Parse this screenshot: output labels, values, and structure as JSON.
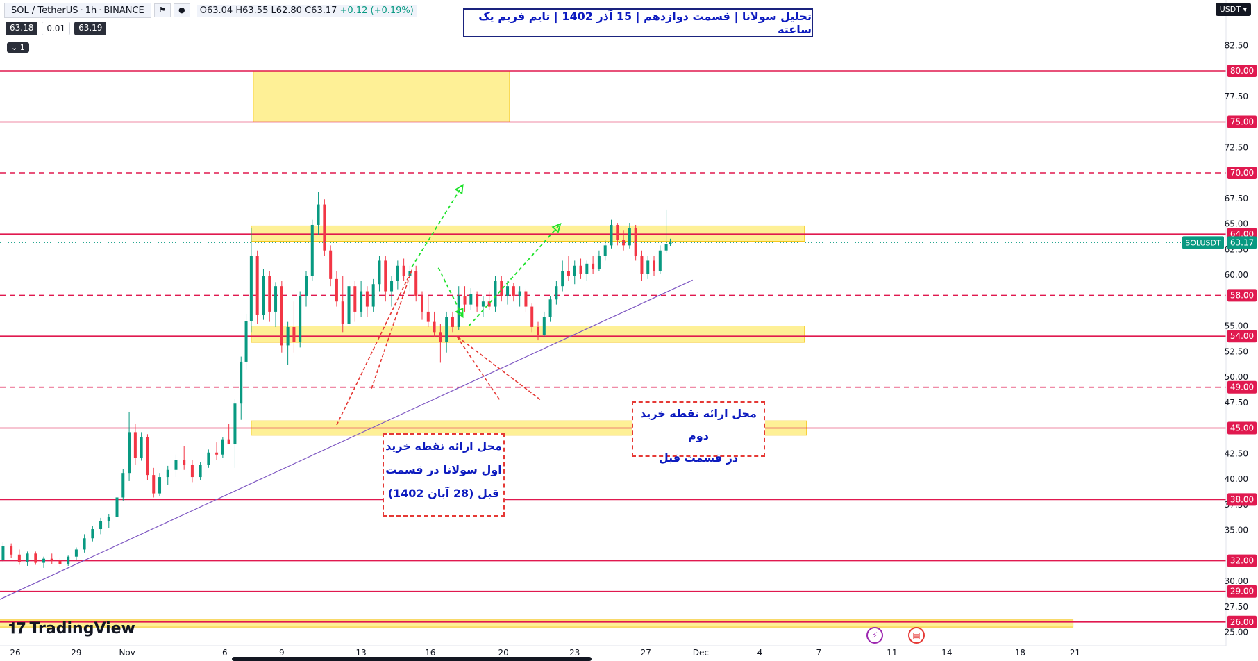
{
  "header": {
    "symbol": "SOL / TetherUS",
    "interval": "1h",
    "exchange": "BINANCE",
    "ohlc_open": "O63.04",
    "ohlc_high": "H63.55",
    "ohlc_low": "L62.80",
    "ohlc_close": "C63.17",
    "ohlc_change": "+0.12 (+0.19%)",
    "bid": "63.18",
    "spread": "0.01",
    "ask": "63.19",
    "collapse_label": "1"
  },
  "title": "تحلیل سولانا | قسمت دوازدهم | 15 آذر 1402 | تایم فریم یک ساعته",
  "currency": "USDT",
  "notes": {
    "first_buy": "محل ارائه نقطه خرید\nاول سولانا در قسمت\nقبل (28 آبان 1402)",
    "second_buy": "محل ارائه نقطه خرید دوم\nدر قسمت قبل"
  },
  "logo": "TradingView",
  "colors": {
    "up": "#089981",
    "down": "#f23645",
    "level": "#e0194f",
    "zone_fill": "#fde96a",
    "zone_edge": "#f5c518",
    "trend": "#7e57c2",
    "arrow": "#1ee12b",
    "note_border": "#e53935",
    "note_text": "#0d1bbf"
  },
  "chart_data": {
    "type": "candlestick",
    "title": "تحلیل سولانا | قسمت دوازدهم | 15 آذر 1402 | تایم فریم یک ساعته",
    "symbol": "SOLUSDT",
    "last_price": 63.17,
    "ylim": [
      25,
      85
    ],
    "y_ticks": [
      25.0,
      27.5,
      30.0,
      35.0,
      37.5,
      40.0,
      42.5,
      47.5,
      50.0,
      52.5,
      55.0,
      60.0,
      62.5,
      65.0,
      67.5,
      72.5,
      77.5,
      82.5
    ],
    "x_ticks": [
      "26",
      "29",
      "Nov",
      "6",
      "9",
      "13",
      "16",
      "20",
      "23",
      "27",
      "Dec",
      "4",
      "7",
      "11",
      "14",
      "18",
      "21"
    ],
    "levels": [
      {
        "value": 80.0,
        "label": "80.00",
        "style": "solid"
      },
      {
        "value": 75.0,
        "label": "75.00",
        "style": "solid"
      },
      {
        "value": 70.0,
        "label": "70.00",
        "style": "dashed"
      },
      {
        "value": 64.0,
        "label": "64.00",
        "style": "solid"
      },
      {
        "value": 58.0,
        "label": "58.00",
        "style": "dashed"
      },
      {
        "value": 54.0,
        "label": "54.00",
        "style": "solid"
      },
      {
        "value": 49.0,
        "label": "49.00",
        "style": "dashed"
      },
      {
        "value": 45.0,
        "label": "45.00",
        "style": "solid"
      },
      {
        "value": 38.0,
        "label": "38.00",
        "style": "solid"
      },
      {
        "value": 32.0,
        "label": "32.00",
        "style": "solid"
      },
      {
        "value": 29.0,
        "label": "29.00",
        "style": "solid"
      },
      {
        "value": 26.0,
        "label": "26.00",
        "style": "solid"
      }
    ],
    "zones": [
      {
        "x_from": 11.7,
        "x_to": 24.3,
        "y_from": 75.0,
        "y_to": 80.0
      },
      {
        "x_from": 11.6,
        "x_to": 38.8,
        "y_from": 63.3,
        "y_to": 64.8
      },
      {
        "x_from": 11.6,
        "x_to": 38.8,
        "y_from": 53.4,
        "y_to": 55.0
      },
      {
        "x_from": 11.6,
        "x_to": 38.9,
        "y_from": 44.3,
        "y_to": 45.7
      },
      {
        "x_from": -1.0,
        "x_to": 52.0,
        "y_from": 25.5,
        "y_to": 26.2
      }
    ],
    "trendline": {
      "x1": -1.0,
      "y1": 28.0,
      "x2": 33.3,
      "y2": 59.5
    },
    "arrows": [
      {
        "x1": 19.5,
        "y1": 60.8,
        "x2": 22.0,
        "y2": 68.8
      },
      {
        "x1": 20.8,
        "y1": 60.7,
        "x2": 22.0,
        "y2": 55.9
      },
      {
        "x1": 22.3,
        "y1": 55.0,
        "x2": 26.8,
        "y2": 65.0
      }
    ],
    "callouts": [
      {
        "anchor_x": 19.5,
        "anchor_y": 60.5,
        "base_x1": 15.8,
        "base_y1": 45.3,
        "base_x2": 17.5,
        "base_y2": 48.8
      },
      {
        "anchor_x": 21.7,
        "anchor_y": 54.0,
        "base_x1": 23.8,
        "base_y1": 47.8,
        "base_x2": 25.8,
        "base_y2": 47.8
      }
    ],
    "candles": [
      {
        "t": -1.0,
        "o": 31.8,
        "h": 32.5,
        "l": 31.2,
        "c": 32.1
      },
      {
        "t": -0.6,
        "o": 32.1,
        "h": 33.8,
        "l": 31.9,
        "c": 33.4
      },
      {
        "t": -0.2,
        "o": 33.4,
        "h": 33.7,
        "l": 32.3,
        "c": 32.6
      },
      {
        "t": 0.2,
        "o": 32.6,
        "h": 33.1,
        "l": 31.6,
        "c": 31.9
      },
      {
        "t": 0.6,
        "o": 31.9,
        "h": 32.9,
        "l": 31.5,
        "c": 32.7
      },
      {
        "t": 1.0,
        "o": 32.7,
        "h": 32.9,
        "l": 31.6,
        "c": 31.8
      },
      {
        "t": 1.4,
        "o": 31.8,
        "h": 32.4,
        "l": 31.3,
        "c": 32.2
      },
      {
        "t": 1.8,
        "o": 32.2,
        "h": 32.7,
        "l": 31.7,
        "c": 32.0
      },
      {
        "t": 2.2,
        "o": 32.0,
        "h": 32.3,
        "l": 31.4,
        "c": 31.7
      },
      {
        "t": 2.6,
        "o": 31.7,
        "h": 32.5,
        "l": 31.5,
        "c": 32.4
      },
      {
        "t": 3.0,
        "o": 32.4,
        "h": 33.3,
        "l": 32.1,
        "c": 33.1
      },
      {
        "t": 3.4,
        "o": 33.1,
        "h": 34.6,
        "l": 32.8,
        "c": 34.2
      },
      {
        "t": 3.8,
        "o": 34.2,
        "h": 35.4,
        "l": 33.9,
        "c": 35.1
      },
      {
        "t": 4.2,
        "o": 35.1,
        "h": 36.2,
        "l": 34.6,
        "c": 35.9
      },
      {
        "t": 4.6,
        "o": 35.9,
        "h": 36.6,
        "l": 35.2,
        "c": 36.3
      },
      {
        "t": 5.0,
        "o": 36.3,
        "h": 38.6,
        "l": 36.0,
        "c": 38.2
      },
      {
        "t": 5.3,
        "o": 38.2,
        "h": 41.0,
        "l": 37.9,
        "c": 40.6
      },
      {
        "t": 5.6,
        "o": 40.6,
        "h": 46.6,
        "l": 39.8,
        "c": 44.6
      },
      {
        "t": 5.9,
        "o": 44.6,
        "h": 45.4,
        "l": 41.4,
        "c": 42.1
      },
      {
        "t": 6.2,
        "o": 42.1,
        "h": 44.6,
        "l": 41.8,
        "c": 44.1
      },
      {
        "t": 6.5,
        "o": 44.1,
        "h": 44.4,
        "l": 39.9,
        "c": 40.4
      },
      {
        "t": 6.8,
        "o": 40.4,
        "h": 41.1,
        "l": 38.2,
        "c": 38.6
      },
      {
        "t": 7.1,
        "o": 38.6,
        "h": 40.6,
        "l": 38.3,
        "c": 40.2
      },
      {
        "t": 7.5,
        "o": 40.2,
        "h": 41.3,
        "l": 39.4,
        "c": 40.9
      },
      {
        "t": 7.9,
        "o": 40.9,
        "h": 42.4,
        "l": 40.2,
        "c": 41.9
      },
      {
        "t": 8.3,
        "o": 41.9,
        "h": 43.2,
        "l": 40.9,
        "c": 41.4
      },
      {
        "t": 8.7,
        "o": 41.4,
        "h": 41.9,
        "l": 39.7,
        "c": 40.2
      },
      {
        "t": 9.1,
        "o": 40.2,
        "h": 41.7,
        "l": 39.9,
        "c": 41.4
      },
      {
        "t": 9.5,
        "o": 41.4,
        "h": 42.9,
        "l": 41.1,
        "c": 42.6
      },
      {
        "t": 9.9,
        "o": 42.6,
        "h": 43.6,
        "l": 41.9,
        "c": 42.4
      },
      {
        "t": 10.2,
        "o": 42.4,
        "h": 44.1,
        "l": 42.1,
        "c": 43.9
      },
      {
        "t": 10.5,
        "o": 43.9,
        "h": 45.4,
        "l": 43.4,
        "c": 43.4
      },
      {
        "t": 10.8,
        "o": 43.4,
        "h": 47.9,
        "l": 41.1,
        "c": 47.4
      },
      {
        "t": 11.1,
        "o": 47.4,
        "h": 52.0,
        "l": 45.8,
        "c": 51.5
      },
      {
        "t": 11.35,
        "o": 51.5,
        "h": 56.2,
        "l": 50.7,
        "c": 55.5
      },
      {
        "t": 11.6,
        "o": 55.5,
        "h": 64.6,
        "l": 54.4,
        "c": 61.9
      },
      {
        "t": 11.9,
        "o": 61.9,
        "h": 62.4,
        "l": 55.2,
        "c": 56.1
      },
      {
        "t": 12.2,
        "o": 56.1,
        "h": 60.6,
        "l": 55.6,
        "c": 59.9
      },
      {
        "t": 12.5,
        "o": 59.9,
        "h": 60.4,
        "l": 55.4,
        "c": 56.4
      },
      {
        "t": 12.8,
        "o": 56.4,
        "h": 59.3,
        "l": 54.9,
        "c": 58.9
      },
      {
        "t": 13.1,
        "o": 58.9,
        "h": 59.4,
        "l": 52.4,
        "c": 53.1
      },
      {
        "t": 13.4,
        "o": 53.1,
        "h": 55.4,
        "l": 51.2,
        "c": 54.9
      },
      {
        "t": 13.7,
        "o": 54.9,
        "h": 57.4,
        "l": 52.4,
        "c": 53.4
      },
      {
        "t": 14.0,
        "o": 53.4,
        "h": 58.4,
        "l": 52.9,
        "c": 57.9
      },
      {
        "t": 14.3,
        "o": 57.9,
        "h": 60.4,
        "l": 56.9,
        "c": 59.9
      },
      {
        "t": 14.6,
        "o": 59.9,
        "h": 65.4,
        "l": 59.4,
        "c": 64.9
      },
      {
        "t": 14.9,
        "o": 64.9,
        "h": 68.1,
        "l": 63.9,
        "c": 66.9
      },
      {
        "t": 15.2,
        "o": 66.9,
        "h": 67.4,
        "l": 61.9,
        "c": 62.4
      },
      {
        "t": 15.5,
        "o": 62.4,
        "h": 62.9,
        "l": 58.9,
        "c": 59.6
      },
      {
        "t": 15.8,
        "o": 59.6,
        "h": 60.4,
        "l": 56.9,
        "c": 57.4
      },
      {
        "t": 16.1,
        "o": 57.4,
        "h": 59.9,
        "l": 54.4,
        "c": 55.2
      },
      {
        "t": 16.4,
        "o": 55.2,
        "h": 59.4,
        "l": 54.9,
        "c": 58.9
      },
      {
        "t": 16.7,
        "o": 58.9,
        "h": 59.4,
        "l": 55.4,
        "c": 56.4
      },
      {
        "t": 17.0,
        "o": 56.4,
        "h": 59.4,
        "l": 55.9,
        "c": 58.4
      },
      {
        "t": 17.3,
        "o": 58.4,
        "h": 58.9,
        "l": 55.9,
        "c": 56.9
      },
      {
        "t": 17.6,
        "o": 56.9,
        "h": 59.6,
        "l": 56.4,
        "c": 59.1
      },
      {
        "t": 17.9,
        "o": 59.1,
        "h": 61.9,
        "l": 58.4,
        "c": 61.4
      },
      {
        "t": 18.2,
        "o": 61.4,
        "h": 61.9,
        "l": 57.4,
        "c": 58.4
      },
      {
        "t": 18.5,
        "o": 58.4,
        "h": 59.9,
        "l": 56.9,
        "c": 59.4
      },
      {
        "t": 18.8,
        "o": 59.4,
        "h": 61.4,
        "l": 58.6,
        "c": 60.9
      },
      {
        "t": 19.1,
        "o": 60.9,
        "h": 61.6,
        "l": 59.4,
        "c": 59.9
      },
      {
        "t": 19.4,
        "o": 59.9,
        "h": 60.9,
        "l": 58.4,
        "c": 60.4
      },
      {
        "t": 19.7,
        "o": 60.4,
        "h": 60.9,
        "l": 57.4,
        "c": 57.9
      },
      {
        "t": 20.0,
        "o": 57.9,
        "h": 58.4,
        "l": 55.6,
        "c": 56.4
      },
      {
        "t": 20.3,
        "o": 56.4,
        "h": 57.9,
        "l": 54.9,
        "c": 55.4
      },
      {
        "t": 20.6,
        "o": 55.4,
        "h": 56.4,
        "l": 53.9,
        "c": 54.4
      },
      {
        "t": 20.9,
        "o": 54.4,
        "h": 55.2,
        "l": 51.4,
        "c": 53.4
      },
      {
        "t": 21.2,
        "o": 53.4,
        "h": 56.4,
        "l": 52.4,
        "c": 55.9
      },
      {
        "t": 21.5,
        "o": 55.9,
        "h": 56.4,
        "l": 54.4,
        "c": 54.9
      },
      {
        "t": 21.8,
        "o": 54.9,
        "h": 58.9,
        "l": 54.6,
        "c": 57.9
      },
      {
        "t": 22.1,
        "o": 57.9,
        "h": 58.9,
        "l": 56.4,
        "c": 57.1
      },
      {
        "t": 22.4,
        "o": 57.1,
        "h": 58.7,
        "l": 56.6,
        "c": 58.1
      },
      {
        "t": 22.7,
        "o": 58.1,
        "h": 58.4,
        "l": 56.4,
        "c": 56.9
      },
      {
        "t": 23.0,
        "o": 56.9,
        "h": 57.9,
        "l": 55.9,
        "c": 57.4
      },
      {
        "t": 23.3,
        "o": 57.4,
        "h": 58.4,
        "l": 56.6,
        "c": 56.9
      },
      {
        "t": 23.6,
        "o": 56.9,
        "h": 59.9,
        "l": 56.4,
        "c": 59.4
      },
      {
        "t": 23.9,
        "o": 59.4,
        "h": 59.9,
        "l": 57.4,
        "c": 57.9
      },
      {
        "t": 24.2,
        "o": 57.9,
        "h": 59.4,
        "l": 57.1,
        "c": 58.9
      },
      {
        "t": 24.5,
        "o": 58.9,
        "h": 59.2,
        "l": 57.4,
        "c": 57.9
      },
      {
        "t": 24.8,
        "o": 57.9,
        "h": 58.9,
        "l": 56.9,
        "c": 58.4
      },
      {
        "t": 25.1,
        "o": 58.4,
        "h": 58.6,
        "l": 56.4,
        "c": 56.9
      },
      {
        "t": 25.4,
        "o": 56.9,
        "h": 57.2,
        "l": 54.4,
        "c": 54.9
      },
      {
        "t": 25.7,
        "o": 54.9,
        "h": 55.4,
        "l": 53.6,
        "c": 54.1
      },
      {
        "t": 26.0,
        "o": 54.1,
        "h": 56.4,
        "l": 53.9,
        "c": 55.9
      },
      {
        "t": 26.3,
        "o": 55.9,
        "h": 57.9,
        "l": 55.4,
        "c": 57.6
      },
      {
        "t": 26.6,
        "o": 57.6,
        "h": 59.4,
        "l": 57.1,
        "c": 58.9
      },
      {
        "t": 26.9,
        "o": 58.9,
        "h": 61.4,
        "l": 58.4,
        "c": 60.4
      },
      {
        "t": 27.2,
        "o": 60.4,
        "h": 61.9,
        "l": 59.4,
        "c": 59.9
      },
      {
        "t": 27.5,
        "o": 59.9,
        "h": 61.4,
        "l": 59.1,
        "c": 60.9
      },
      {
        "t": 27.8,
        "o": 60.9,
        "h": 61.6,
        "l": 59.6,
        "c": 60.1
      },
      {
        "t": 28.1,
        "o": 60.1,
        "h": 61.4,
        "l": 59.4,
        "c": 61.1
      },
      {
        "t": 28.4,
        "o": 61.1,
        "h": 61.9,
        "l": 60.1,
        "c": 60.6
      },
      {
        "t": 28.7,
        "o": 60.6,
        "h": 62.4,
        "l": 60.4,
        "c": 61.9
      },
      {
        "t": 29.0,
        "o": 61.9,
        "h": 63.4,
        "l": 61.4,
        "c": 62.9
      },
      {
        "t": 29.3,
        "o": 62.9,
        "h": 65.4,
        "l": 62.6,
        "c": 64.9
      },
      {
        "t": 29.6,
        "o": 64.9,
        "h": 65.1,
        "l": 62.9,
        "c": 63.4
      },
      {
        "t": 29.9,
        "o": 63.4,
        "h": 64.4,
        "l": 62.4,
        "c": 62.9
      },
      {
        "t": 30.2,
        "o": 62.9,
        "h": 65.1,
        "l": 62.6,
        "c": 64.6
      },
      {
        "t": 30.5,
        "o": 64.6,
        "h": 64.9,
        "l": 61.4,
        "c": 61.9
      },
      {
        "t": 30.8,
        "o": 61.9,
        "h": 62.4,
        "l": 59.4,
        "c": 60.1
      },
      {
        "t": 31.1,
        "o": 60.1,
        "h": 61.9,
        "l": 59.6,
        "c": 61.4
      },
      {
        "t": 31.4,
        "o": 61.4,
        "h": 61.9,
        "l": 59.9,
        "c": 60.4
      },
      {
        "t": 31.7,
        "o": 60.4,
        "h": 62.9,
        "l": 60.1,
        "c": 62.4
      },
      {
        "t": 32.0,
        "o": 62.4,
        "h": 66.4,
        "l": 62.1,
        "c": 63.04
      },
      {
        "t": 32.2,
        "o": 63.04,
        "h": 63.55,
        "l": 62.8,
        "c": 63.17
      }
    ]
  }
}
